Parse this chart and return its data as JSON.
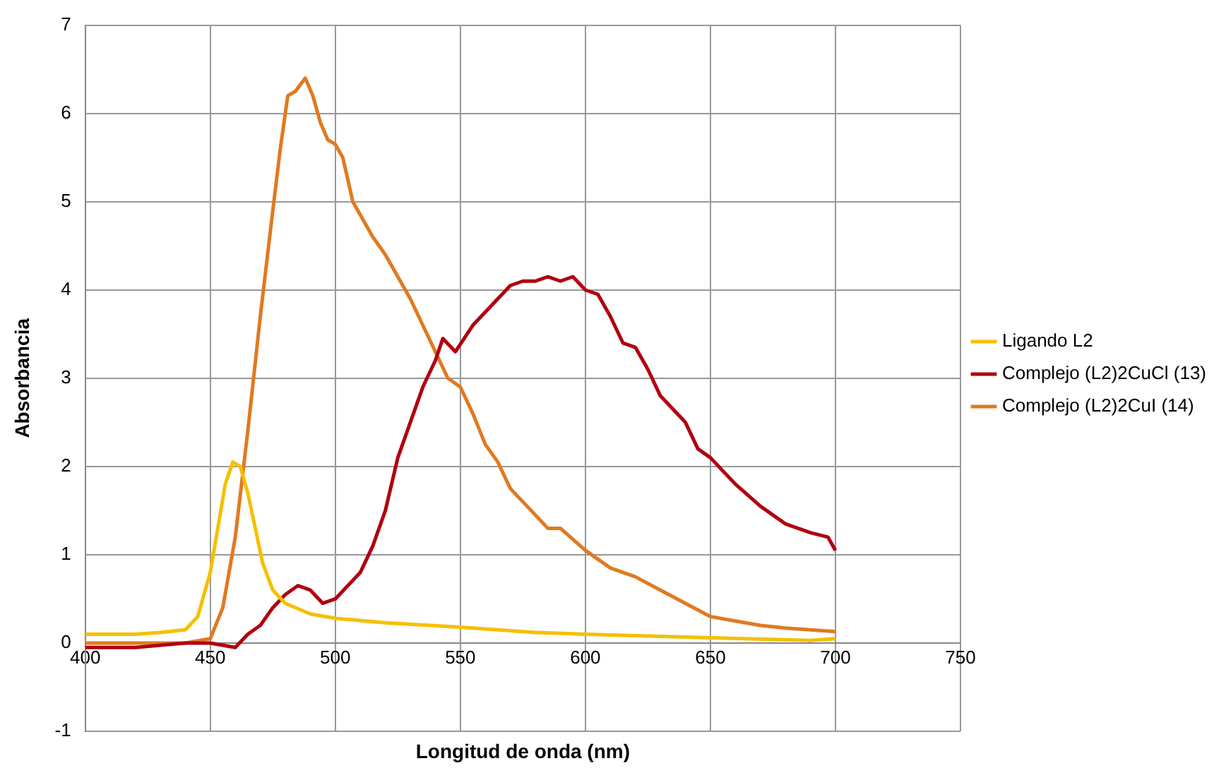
{
  "chart_data": {
    "type": "line",
    "xlabel": "Longitud de onda (nm)",
    "ylabel": "Absorbancia",
    "xlim": [
      400,
      750
    ],
    "xticks": [
      400,
      450,
      500,
      550,
      600,
      650,
      700,
      750
    ],
    "ylim": [
      -1,
      7
    ],
    "yticks": [
      -1,
      0,
      1,
      2,
      3,
      4,
      5,
      6,
      7
    ],
    "grid": true,
    "legend": "right",
    "marker": "none",
    "line_style": "solid",
    "series": [
      {
        "name": "Ligando L2",
        "color": "#f5c000",
        "x": [
          400,
          420,
          430,
          440,
          445,
          450,
          453,
          456,
          459,
          462,
          465,
          468,
          471,
          475,
          480,
          490,
          500,
          520,
          550,
          580,
          600,
          650,
          690,
          700
        ],
        "values": [
          0.1,
          0.1,
          0.12,
          0.15,
          0.3,
          0.8,
          1.3,
          1.8,
          2.05,
          2.0,
          1.7,
          1.3,
          0.9,
          0.6,
          0.45,
          0.33,
          0.28,
          0.23,
          0.18,
          0.12,
          0.1,
          0.06,
          0.03,
          0.05
        ]
      },
      {
        "name": "Complejo (L2)2CuCl (13)",
        "color": "#b00010",
        "x": [
          400,
          420,
          440,
          450,
          460,
          465,
          470,
          475,
          480,
          485,
          490,
          495,
          500,
          510,
          515,
          520,
          525,
          530,
          535,
          540,
          543,
          548,
          555,
          560,
          565,
          570,
          575,
          580,
          585,
          590,
          595,
          600,
          605,
          610,
          615,
          620,
          625,
          630,
          640,
          645,
          650,
          660,
          670,
          680,
          690,
          697,
          700
        ],
        "values": [
          -0.05,
          -0.05,
          0,
          0,
          -0.05,
          0.1,
          0.2,
          0.4,
          0.55,
          0.65,
          0.6,
          0.45,
          0.5,
          0.8,
          1.1,
          1.5,
          2.1,
          2.5,
          2.9,
          3.2,
          3.45,
          3.3,
          3.6,
          3.75,
          3.9,
          4.05,
          4.1,
          4.1,
          4.15,
          4.1,
          4.15,
          4.0,
          3.95,
          3.7,
          3.4,
          3.35,
          3.1,
          2.8,
          2.5,
          2.2,
          2.1,
          1.8,
          1.55,
          1.35,
          1.25,
          1.2,
          1.05
        ]
      },
      {
        "name": "Complejo (L2)2CuI (14)",
        "color": "#e07a20",
        "x": [
          400,
          440,
          450,
          455,
          460,
          465,
          470,
          475,
          478,
          481,
          484,
          488,
          491,
          494,
          497,
          500,
          503,
          507,
          515,
          520,
          525,
          530,
          535,
          540,
          545,
          550,
          555,
          560,
          565,
          570,
          575,
          580,
          585,
          590,
          600,
          610,
          620,
          630,
          640,
          650,
          660,
          670,
          680,
          690,
          700
        ],
        "values": [
          0,
          0,
          0.05,
          0.4,
          1.2,
          2.4,
          3.7,
          4.9,
          5.6,
          6.2,
          6.25,
          6.4,
          6.2,
          5.9,
          5.7,
          5.65,
          5.5,
          5.0,
          4.6,
          4.4,
          4.15,
          3.9,
          3.6,
          3.3,
          3.0,
          2.9,
          2.6,
          2.25,
          2.05,
          1.75,
          1.6,
          1.45,
          1.3,
          1.3,
          1.05,
          0.85,
          0.75,
          0.6,
          0.45,
          0.3,
          0.25,
          0.2,
          0.17,
          0.15,
          0.13
        ]
      }
    ]
  }
}
